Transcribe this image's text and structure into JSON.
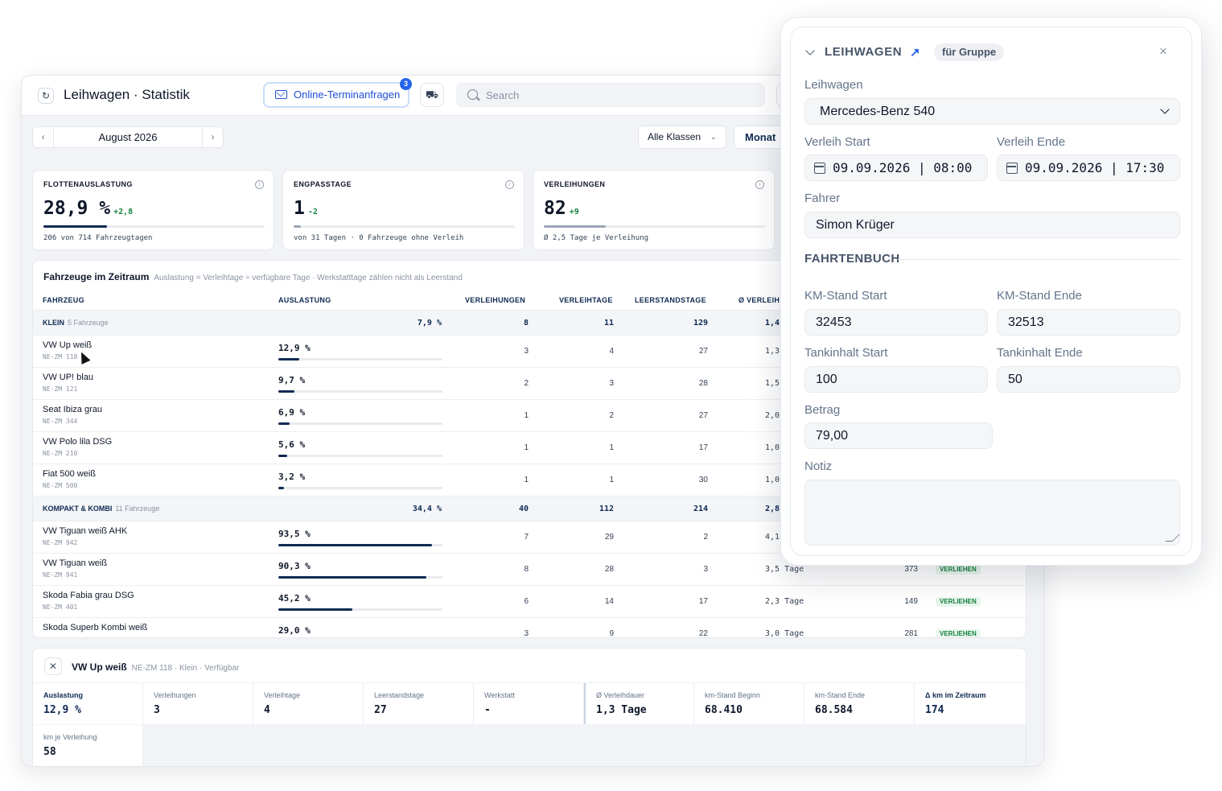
{
  "header": {
    "title": "Leihwagen · Statistik",
    "online_requests_label": "Online-Terminanfragen",
    "online_requests_badge": "3",
    "search_placeholder": "Search"
  },
  "toolbar": {
    "month": "August 2026",
    "class_filter": "Alle Klassen",
    "period": "Monat"
  },
  "kpis": [
    {
      "title": "FLOTTENAUSLASTUNG",
      "value": "28,9 %",
      "delta": "+2,8",
      "sub": "206 von 714 Fahrzeugtagen",
      "fill_fraction": 0.289
    },
    {
      "title": "ENGPASSTAGE",
      "value": "1",
      "delta": "-2",
      "sub": "von 31 Tagen · 0 Fahrzeuge ohne Verleih",
      "fill_fraction": 0.032
    },
    {
      "title": "VERLEIHUNGEN",
      "value": "82",
      "delta": "+9",
      "sub": "Ø 2,5 Tage je Verleihung",
      "fill_fraction": 0.28
    }
  ],
  "table": {
    "title": "Fahrzeuge im Zeitraum",
    "subtitle": "Auslastung = Verleihtage ÷ verfügbare Tage · Werkstatttage zählen nicht als Leerstand",
    "columns": [
      "FAHRZEUG",
      "AUSLASTUNG",
      "VERLEIHUNGEN",
      "VERLEIHTAGE",
      "LEERSTANDSTAGE",
      "Ø VERLEIH"
    ],
    "groups": [
      {
        "name": "KLEIN",
        "count": "5 Fahrzeuge",
        "util": "7,9 %",
        "rentals": "8",
        "days": "11",
        "idle": "129",
        "avg": "1,4",
        "rows": [
          {
            "name": "VW Up weiß",
            "plate": "NE-ZM 118",
            "util": "12,9 %",
            "util_fraction": 0.129,
            "rentals": "3",
            "days": "4",
            "idle": "27",
            "avg": "1,3"
          },
          {
            "name": "VW UP! blau",
            "plate": "NE-ZM 121",
            "util": "9,7 %",
            "util_fraction": 0.097,
            "rentals": "2",
            "days": "3",
            "idle": "28",
            "avg": "1,5"
          },
          {
            "name": "Seat Ibiza grau",
            "plate": "NE-ZM 344",
            "util": "6,9 %",
            "util_fraction": 0.069,
            "rentals": "1",
            "days": "2",
            "idle": "27",
            "avg": "2,0"
          },
          {
            "name": "VW Polo lila DSG",
            "plate": "NE-ZM 210",
            "util": "5,6 %",
            "util_fraction": 0.056,
            "rentals": "1",
            "days": "1",
            "idle": "17",
            "avg": "1,0"
          },
          {
            "name": "Fiat 500 weiß",
            "plate": "NE-ZM 500",
            "util": "3,2 %",
            "util_fraction": 0.032,
            "rentals": "1",
            "days": "1",
            "idle": "30",
            "avg": "1,0"
          }
        ]
      },
      {
        "name": "KOMPAKT & KOMBI",
        "count": "11 Fahrzeuge",
        "util": "34,4 %",
        "rentals": "40",
        "days": "112",
        "idle": "214",
        "avg": "2,8",
        "rows": [
          {
            "name": "VW Tiguan weiß AHK",
            "plate": "NE-ZM 942",
            "util": "93,5 %",
            "util_fraction": 0.935,
            "rentals": "7",
            "days": "29",
            "idle": "2",
            "avg": "4,1"
          },
          {
            "name": "VW Tiguan weiß",
            "plate": "NE-ZM 941",
            "util": "90,3 %",
            "util_fraction": 0.903,
            "rentals": "8",
            "days": "28",
            "idle": "3",
            "avg": "3,5 Tage",
            "km": "373",
            "status": "VERLIEHEN"
          },
          {
            "name": "Skoda Fabia grau DSG",
            "plate": "NE-ZM 401",
            "util": "45,2 %",
            "util_fraction": 0.452,
            "rentals": "6",
            "days": "14",
            "idle": "17",
            "avg": "2,3 Tage",
            "km": "149",
            "status": "VERLIEHEN"
          },
          {
            "name": "Skoda Superb Kombi weiß",
            "plate": "",
            "util": "29,0 %",
            "util_fraction": 0.29,
            "rentals": "3",
            "days": "9",
            "idle": "22",
            "avg": "3,0 Tage",
            "km": "281",
            "status": "VERLIEHEN"
          }
        ]
      }
    ]
  },
  "detail": {
    "name": "VW Up weiß",
    "meta": "NE-ZM 118 · Klein · Verfügbar",
    "stats": [
      {
        "label": "Auslastung",
        "value": "12,9 %"
      },
      {
        "label": "Verleihungen",
        "value": "3"
      },
      {
        "label": "Verleihtage",
        "value": "4"
      },
      {
        "label": "Leerstandstage",
        "value": "27"
      },
      {
        "label": "Werkstatt",
        "value": "-"
      },
      {
        "label": "Ø Verleihdauer",
        "value": "1,3 Tage"
      },
      {
        "label": "km-Stand Beginn",
        "value": "68.410"
      },
      {
        "label": "km-Stand Ende",
        "value": "68.584"
      },
      {
        "label": "Δ km im Zeitraum",
        "value": "174"
      },
      {
        "label": "km je Verleihung",
        "value": "58"
      }
    ]
  },
  "panel": {
    "title": "LEIHWAGEN",
    "chip": "für Gruppe",
    "vehicle_label": "Leihwagen",
    "vehicle_value": "Mercedes-Benz 540",
    "start_label": "Verleih Start",
    "start_value": "09.09.2026 | 08:00",
    "end_label": "Verleih Ende",
    "end_value": "09.09.2026 | 17:30",
    "driver_label": "Fahrer",
    "driver_value": "Simon Krüger",
    "logbook_title": "FAHRTENBUCH",
    "km_start_label": "KM-Stand Start",
    "km_start_value": "32453",
    "km_end_label": "KM-Stand Ende",
    "km_end_value": "32513",
    "tank_start_label": "Tankinhalt Start",
    "tank_start_value": "100",
    "tank_end_label": "Tankinhalt Ende",
    "tank_end_value": "50",
    "amount_label": "Betrag",
    "amount_value": "79,00",
    "notes_label": "Notiz"
  }
}
